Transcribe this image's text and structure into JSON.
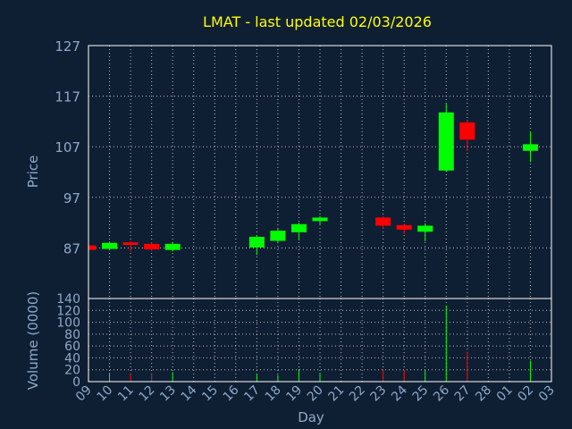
{
  "colors": {
    "background": "#0f1f33",
    "title": "#ffff00",
    "axis_text": "#8fa8c8",
    "grid": "#ffffff",
    "up": "#00ff00",
    "down": "#ff0000"
  },
  "chart_data": [
    {
      "type": "candlestick",
      "title": "LMAT - last updated 02/03/2026",
      "ylabel": "Price",
      "ylim": [
        77,
        127
      ],
      "yticks": [
        87,
        97,
        107,
        117,
        127
      ],
      "x_tick_labels": [
        "09",
        "10",
        "11",
        "12",
        "13",
        "14",
        "15",
        "16",
        "17",
        "18",
        "19",
        "20",
        "21",
        "22",
        "23",
        "24",
        "25",
        "26",
        "27",
        "28",
        "01",
        "02",
        "03"
      ],
      "candles": [
        {
          "x": "09",
          "open": 87.5,
          "close": 86.6,
          "high": 87.8,
          "low": 86.3
        },
        {
          "x": "10",
          "open": 86.8,
          "close": 88.0,
          "high": 88.3,
          "low": 86.5
        },
        {
          "x": "11",
          "open": 88.1,
          "close": 87.6,
          "high": 88.4,
          "low": 86.3
        },
        {
          "x": "12",
          "open": 87.8,
          "close": 86.7,
          "high": 88.1,
          "low": 86.4
        },
        {
          "x": "13",
          "open": 86.6,
          "close": 87.8,
          "high": 88.2,
          "low": 86.3
        },
        {
          "x": "17",
          "open": 87.1,
          "close": 89.2,
          "high": 89.5,
          "low": 85.6
        },
        {
          "x": "18",
          "open": 88.4,
          "close": 90.4,
          "high": 90.8,
          "low": 88.0
        },
        {
          "x": "19",
          "open": 90.1,
          "close": 91.7,
          "high": 92.0,
          "low": 88.5
        },
        {
          "x": "20",
          "open": 92.3,
          "close": 93.0,
          "high": 93.3,
          "low": 91.5
        },
        {
          "x": "23",
          "open": 93.0,
          "close": 91.4,
          "high": 93.2,
          "low": 90.8
        },
        {
          "x": "24",
          "open": 91.5,
          "close": 90.6,
          "high": 91.8,
          "low": 89.8
        },
        {
          "x": "25",
          "open": 90.2,
          "close": 91.4,
          "high": 91.9,
          "low": 88.3
        },
        {
          "x": "26",
          "open": 102.3,
          "close": 113.8,
          "high": 115.5,
          "low": 102.0
        },
        {
          "x": "27",
          "open": 111.8,
          "close": 108.4,
          "high": 112.4,
          "low": 106.2
        },
        {
          "x": "02",
          "open": 106.2,
          "close": 107.5,
          "high": 110.0,
          "low": 104.0
        }
      ]
    },
    {
      "type": "bar",
      "ylabel": "Volume (0000)",
      "xlabel": "Day",
      "ylim": [
        0,
        140
      ],
      "yticks": [
        0,
        20,
        40,
        60,
        80,
        100,
        120,
        140
      ],
      "x_tick_labels": [
        "09",
        "10",
        "11",
        "12",
        "13",
        "14",
        "15",
        "16",
        "17",
        "18",
        "19",
        "20",
        "21",
        "22",
        "23",
        "24",
        "25",
        "26",
        "27",
        "28",
        "01",
        "02",
        "03"
      ],
      "bars": [
        {
          "x": "09",
          "value": 0,
          "dir": "down"
        },
        {
          "x": "10",
          "value": 15,
          "dir": "up"
        },
        {
          "x": "11",
          "value": 13,
          "dir": "down"
        },
        {
          "x": "12",
          "value": 13,
          "dir": "down"
        },
        {
          "x": "13",
          "value": 16,
          "dir": "up"
        },
        {
          "x": "17",
          "value": 13,
          "dir": "up"
        },
        {
          "x": "18",
          "value": 11,
          "dir": "up"
        },
        {
          "x": "19",
          "value": 21,
          "dir": "up"
        },
        {
          "x": "20",
          "value": 15,
          "dir": "up"
        },
        {
          "x": "23",
          "value": 21,
          "dir": "down"
        },
        {
          "x": "24",
          "value": 20,
          "dir": "down"
        },
        {
          "x": "25",
          "value": 19,
          "dir": "up"
        },
        {
          "x": "26",
          "value": 128,
          "dir": "up"
        },
        {
          "x": "27",
          "value": 51,
          "dir": "down"
        },
        {
          "x": "02",
          "value": 35,
          "dir": "up"
        }
      ]
    }
  ]
}
